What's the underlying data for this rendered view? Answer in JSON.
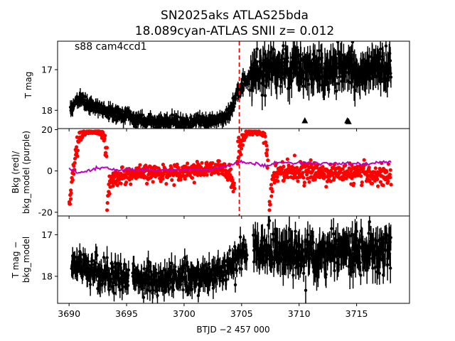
{
  "colors": {
    "points": "#000000",
    "bkg_data": "#ff0000",
    "bkg_model": "#bf00bf",
    "event_line": "#ff0000"
  },
  "chart_data": {
    "type": "scatter",
    "title": "SN2025aks  ATLAS25bda",
    "subtitle": "18.089cyan-ATLAS SNII z= 0.012",
    "annotation": "s88 cam4ccd1",
    "xlabel": "BTJD −2 457 000",
    "xlim": [
      3689.0,
      3719.6
    ],
    "x_ticks": [
      3690,
      3695,
      3700,
      3705,
      3710,
      3715
    ],
    "x_tick_labels": [
      "3690",
      "3695",
      "3700",
      "3705",
      "3710",
      "3715"
    ],
    "event_time": 3704.8,
    "panels": [
      {
        "id": "top",
        "ylabel": "T mag",
        "ylim": [
          18.45,
          16.3
        ],
        "inverted": true,
        "y_ticks": [
          17,
          18
        ],
        "series": [
          {
            "style": "errorbar",
            "color": "#000000",
            "segments": [
              {
                "x": [
                  3690.1,
                  3690.5,
                  3691.0,
                  3691.5,
                  3692.0,
                  3692.5,
                  3693.0,
                  3693.5,
                  3694.0,
                  3694.5,
                  3695.0,
                  3695.5,
                  3696.0,
                  3696.5,
                  3697.0,
                  3697.5,
                  3698.0,
                  3698.5,
                  3699.0,
                  3699.5,
                  3700.0,
                  3700.5,
                  3701.0,
                  3701.5,
                  3702.0,
                  3702.5,
                  3703.0,
                  3703.5,
                  3704.0,
                  3704.3,
                  3704.6,
                  3705.0,
                  3705.4,
                  3705.8,
                  3706.2
                ],
                "y": [
                  18.0,
                  17.85,
                  17.7,
                  17.85,
                  17.9,
                  17.95,
                  17.95,
                  18.1,
                  18.05,
                  18.15,
                  18.1,
                  18.2,
                  18.25,
                  18.25,
                  18.25,
                  18.3,
                  18.3,
                  18.25,
                  18.25,
                  18.3,
                  18.3,
                  18.3,
                  18.25,
                  18.25,
                  18.3,
                  18.25,
                  18.2,
                  18.2,
                  18.0,
                  17.8,
                  17.6,
                  17.4,
                  17.25,
                  17.2,
                  17.25
                ],
                "noise": [
                  0.12,
                  0.12,
                  0.12,
                  0.12,
                  0.12,
                  0.12,
                  0.12,
                  0.12,
                  0.12,
                  0.12,
                  0.12,
                  0.12,
                  0.12,
                  0.12,
                  0.12,
                  0.12,
                  0.12,
                  0.12,
                  0.12,
                  0.12,
                  0.12,
                  0.12,
                  0.12,
                  0.12,
                  0.12,
                  0.12,
                  0.12,
                  0.12,
                  0.15,
                  0.18,
                  0.18,
                  0.2,
                  0.2,
                  0.22,
                  0.25
                ],
                "err": 0.12
              },
              {
                "x": [
                  3705.8,
                  3706.5,
                  3707.0,
                  3708.0,
                  3709.0,
                  3710.0,
                  3711.0,
                  3712.0,
                  3713.0,
                  3714.0,
                  3715.0,
                  3716.0,
                  3717.0,
                  3718.0
                ],
                "y": [
                  17.05,
                  17.0,
                  16.95,
                  16.9,
                  16.95,
                  17.0,
                  17.05,
                  17.05,
                  17.0,
                  17.0,
                  17.0,
                  17.0,
                  17.05,
                  17.0
                ],
                "noise": [
                  0.45,
                  0.45,
                  0.45,
                  0.45,
                  0.45,
                  0.45,
                  0.45,
                  0.45,
                  0.45,
                  0.45,
                  0.45,
                  0.45,
                  0.45,
                  0.45
                ],
                "err": 0.3
              }
            ]
          },
          {
            "style": "triangle",
            "color": "#000000",
            "x": [
              3710.5,
              3714.2,
              3714.3
            ],
            "y": [
              18.25,
              18.25,
              18.27
            ]
          }
        ]
      },
      {
        "id": "middle",
        "ylabel": "Bkg (red)/\nbkg_model (purple)",
        "ylim": [
          -21.8,
          20.5
        ],
        "inverted": false,
        "y_ticks": [
          -20,
          0,
          20
        ],
        "series": [
          {
            "style": "dots",
            "name": "Bkg",
            "color": "#ff0000",
            "segments": [
              {
                "x": [
                  3690.0,
                  3690.3,
                  3690.6,
                  3691.0,
                  3691.3,
                  3691.6,
                  3692.0,
                  3692.5,
                  3693.0,
                  3693.3
                ],
                "y": [
                  -18.0,
                  -5.0,
                  10.0,
                  17.0,
                  18.0,
                  19.0,
                  19.0,
                  19.0,
                  18.0,
                  5.0
                ],
                "noise": [
                  3,
                  6,
                  6,
                  3,
                  2,
                  1,
                  1,
                  1,
                  2,
                  6
                ],
                "err": 0
              },
              {
                "x": [
                  3693.3,
                  3693.5,
                  3694.0,
                  3695.0,
                  3696.0,
                  3697.0,
                  3698.0,
                  3699.0,
                  3700.0,
                  3701.0,
                  3702.0,
                  3703.0,
                  3704.0,
                  3704.4
                ],
                "y": [
                  -18.0,
                  -6.0,
                  -3.0,
                  -2.0,
                  -1.5,
                  -1.0,
                  -1.0,
                  -0.5,
                  0.0,
                  0.0,
                  0.5,
                  1.0,
                  0.0,
                  -10.0
                ],
                "noise": [
                  3,
                  5,
                  3.5,
                  3.5,
                  3.5,
                  3.5,
                  3.5,
                  3.5,
                  3.5,
                  3.5,
                  3.5,
                  3.5,
                  4,
                  5
                ],
                "err": 0
              },
              {
                "x": [
                  3704.6,
                  3705.0,
                  3705.5,
                  3706.0,
                  3706.5,
                  3707.0,
                  3707.3
                ],
                "y": [
                  5.0,
                  15.0,
                  19.0,
                  19.0,
                  19.0,
                  17.0,
                  5.0
                ],
                "noise": [
                  6,
                  4,
                  1,
                  1,
                  1,
                  3,
                  7
                ],
                "err": 0
              },
              {
                "x": [
                  3707.4,
                  3707.7,
                  3708.0,
                  3709.0,
                  3710.0,
                  3711.0,
                  3712.0,
                  3713.0,
                  3714.0,
                  3715.0,
                  3716.0,
                  3717.0,
                  3718.0
                ],
                "y": [
                  -15.0,
                  -5.0,
                  0.0,
                  0.0,
                  0.0,
                  -0.5,
                  -1.0,
                  -1.0,
                  -1.0,
                  -1.5,
                  -1.5,
                  -2.0,
                  -2.0
                ],
                "noise": [
                  5,
                  5,
                  4,
                  4,
                  4,
                  4,
                  4,
                  4,
                  4,
                  4,
                  4.5,
                  4.5,
                  5
                ],
                "err": 0
              }
            ]
          },
          {
            "style": "line",
            "name": "bkg_model",
            "color": "#bf00bf",
            "x": [
              3690.0,
              3691.0,
              3692.0,
              3693.0,
              3694.0,
              3696.0,
              3698.0,
              3700.0,
              3702.0,
              3703.0,
              3704.0,
              3704.5,
              3705.0,
              3706.0,
              3707.0,
              3708.0,
              3710.0,
              3712.0,
              3714.0,
              3716.0,
              3717.0,
              3718.0
            ],
            "y": [
              1.0,
              -1.0,
              0.5,
              2.0,
              0.5,
              0.5,
              0.5,
              0.5,
              0.5,
              1.5,
              2.5,
              4.0,
              4.5,
              3.5,
              2.5,
              4.0,
              4.0,
              3.5,
              3.5,
              3.5,
              4.0,
              4.5
            ]
          }
        ]
      },
      {
        "id": "bottom",
        "ylabel": "T mag −\nbkg_model",
        "ylim": [
          18.65,
          16.55
        ],
        "inverted": true,
        "y_ticks": [
          17,
          18
        ],
        "series": [
          {
            "style": "errorbar",
            "color": "#000000",
            "segments": [
              {
                "x": [
                  3690.2,
                  3690.8,
                  3691.5,
                  3692.2,
                  3693.0,
                  3693.8,
                  3694.5,
                  3695.2
                ],
                "y": [
                  17.7,
                  17.75,
                  17.85,
                  17.9,
                  17.95,
                  18.0,
                  18.0,
                  18.05
                ],
                "noise": [
                  0.35,
                  0.35,
                  0.35,
                  0.35,
                  0.35,
                  0.35,
                  0.35,
                  0.35
                ],
                "err": 0.2
              },
              {
                "x": [
                  3695.5,
                  3696.5,
                  3697.5,
                  3698.5,
                  3699.5,
                  3700.5,
                  3701.5,
                  3702.5,
                  3703.5,
                  3704.2,
                  3704.8,
                  3705.5
                ],
                "y": [
                  18.05,
                  18.1,
                  18.1,
                  18.1,
                  18.05,
                  18.05,
                  18.0,
                  17.95,
                  17.85,
                  17.7,
                  17.5,
                  17.3
                ],
                "noise": [
                  0.3,
                  0.3,
                  0.3,
                  0.3,
                  0.3,
                  0.3,
                  0.3,
                  0.3,
                  0.3,
                  0.3,
                  0.3,
                  0.3
                ],
                "err": 0.2
              },
              {
                "x": [
                  3706.0,
                  3707.0,
                  3708.0,
                  3709.0,
                  3710.0,
                  3711.0,
                  3712.0,
                  3713.0,
                  3714.0,
                  3715.0,
                  3716.0,
                  3717.0,
                  3718.0
                ],
                "y": [
                  17.35,
                  17.4,
                  17.4,
                  17.45,
                  17.45,
                  17.45,
                  17.45,
                  17.4,
                  17.4,
                  17.4,
                  17.45,
                  17.45,
                  17.4
                ],
                "noise": [
                  0.45,
                  0.45,
                  0.45,
                  0.45,
                  0.45,
                  0.45,
                  0.45,
                  0.45,
                  0.45,
                  0.45,
                  0.45,
                  0.45,
                  0.45
                ],
                "err": 0.3
              }
            ]
          }
        ]
      }
    ]
  }
}
